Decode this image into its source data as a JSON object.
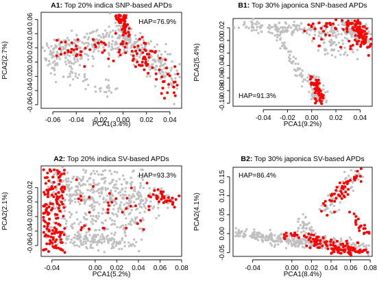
{
  "colors": {
    "background": "#808080",
    "highlight": "#ff0000",
    "grey": "#c0c0c0"
  },
  "chart_data": [
    {
      "id": "A1",
      "type": "scatter",
      "tag": "A1:",
      "title": "Top 20% indica SNP-based APDs",
      "annotation": "HAP=76.9%",
      "annotation_pos": "top-right",
      "xlabel": "PCA1(3.4%)",
      "ylabel": "PCA2(2.7%)",
      "xlim": [
        -0.07,
        0.05
      ],
      "ylim": [
        -0.065,
        0.07
      ],
      "xticks": [
        -0.06,
        -0.04,
        -0.02,
        0.0,
        0.02,
        0.04
      ],
      "xtick_labels": [
        "-0.06",
        "-0.04",
        "-0.02",
        "0.00",
        "0.02",
        "0.04"
      ],
      "yticks": [
        -0.06,
        -0.04,
        -0.02,
        0.0,
        0.02,
        0.04,
        0.06
      ],
      "ytick_labels": [
        "-0.06",
        "-0.04",
        "-0.02",
        "0.00",
        "0.02",
        "0.04",
        "0.06"
      ],
      "grid": false,
      "series": [
        {
          "color": "#c0c0c0",
          "n": 520,
          "seed": 11,
          "clusters": [
            {
              "type": "band",
              "w": 0.45,
              "x1": -0.066,
              "y1": 0.005,
              "x2": 0.0,
              "y2": 0.035,
              "sx": 0.003,
              "sy": 0.012
            },
            {
              "type": "band",
              "w": 0.35,
              "x1": 0.0,
              "y1": 0.035,
              "x2": 0.044,
              "y2": -0.02,
              "sx": 0.004,
              "sy": 0.012
            },
            {
              "type": "band",
              "w": 0.12,
              "x1": -0.002,
              "y1": 0.064,
              "x2": 0.004,
              "y2": 0.02,
              "sx": 0.003,
              "sy": 0.006
            },
            {
              "type": "band",
              "w": 0.08,
              "x1": -0.05,
              "y1": -0.012,
              "x2": -0.01,
              "y2": -0.04,
              "sx": 0.004,
              "sy": 0.005
            }
          ]
        },
        {
          "color": "#ff0000",
          "n": 160,
          "seed": 12,
          "clusters": [
            {
              "type": "band",
              "w": 0.3,
              "x1": -0.002,
              "y1": 0.066,
              "x2": 0.003,
              "y2": 0.04,
              "sx": 0.002,
              "sy": 0.004
            },
            {
              "type": "band",
              "w": 0.45,
              "x1": 0.0,
              "y1": 0.03,
              "x2": 0.044,
              "y2": -0.03,
              "sx": 0.005,
              "sy": 0.012
            },
            {
              "type": "band",
              "w": 0.25,
              "x1": -0.055,
              "y1": 0.015,
              "x2": -0.005,
              "y2": 0.02,
              "sx": 0.006,
              "sy": 0.01
            }
          ]
        }
      ]
    },
    {
      "id": "B1",
      "type": "scatter",
      "tag": "B1:",
      "title": "Top 30% japonica SNP-based APDs",
      "annotation": "HAP=91.3%",
      "annotation_pos": "bottom-left",
      "xlabel": "PCA1(9.2%)",
      "ylabel": "PCA2(5.4%)",
      "xlim": [
        -0.065,
        0.05
      ],
      "ylim": [
        -0.105,
        0.035
      ],
      "xticks": [
        -0.04,
        -0.02,
        0.0,
        0.02,
        0.04
      ],
      "xtick_labels": [
        "-0.04",
        "-0.02",
        "0.00",
        "0.02",
        "0.04"
      ],
      "yticks": [
        -0.1,
        -0.08,
        -0.06,
        -0.04,
        -0.02,
        0.0,
        0.02
      ],
      "ytick_labels": [
        "-0.10",
        "-0.08",
        "-0.06",
        "-0.04",
        "-0.02",
        "0.00",
        "0.02"
      ],
      "grid": false,
      "series": [
        {
          "color": "#c0c0c0",
          "n": 480,
          "seed": 21,
          "clusters": [
            {
              "type": "band",
              "w": 0.4,
              "x1": -0.062,
              "y1": 0.025,
              "x2": 0.045,
              "y2": 0.012,
              "sx": 0.003,
              "sy": 0.006
            },
            {
              "type": "band",
              "w": 0.22,
              "x1": 0.03,
              "y1": 0.03,
              "x2": 0.045,
              "y2": 0.0,
              "sx": 0.004,
              "sy": 0.006
            },
            {
              "type": "band",
              "w": 0.16,
              "x1": -0.03,
              "y1": 0.015,
              "x2": 0.005,
              "y2": -0.1,
              "sx": 0.002,
              "sy": 0.003
            },
            {
              "type": "band",
              "w": 0.12,
              "x1": 0.0,
              "y1": -0.06,
              "x2": 0.01,
              "y2": -0.1,
              "sx": 0.003,
              "sy": 0.004
            },
            {
              "type": "band",
              "w": 0.1,
              "x1": 0.01,
              "y1": 0.0,
              "x2": 0.03,
              "y2": -0.02,
              "sx": 0.006,
              "sy": 0.008
            }
          ]
        },
        {
          "color": "#ff0000",
          "n": 170,
          "seed": 22,
          "clusters": [
            {
              "type": "band",
              "w": 0.4,
              "x1": 0.036,
              "y1": 0.03,
              "x2": 0.045,
              "y2": -0.008,
              "sx": 0.003,
              "sy": 0.003
            },
            {
              "type": "band",
              "w": 0.3,
              "x1": 0.002,
              "y1": -0.06,
              "x2": 0.008,
              "y2": -0.1,
              "sx": 0.002,
              "sy": 0.004
            },
            {
              "type": "band",
              "w": 0.2,
              "x1": 0.0,
              "y1": 0.025,
              "x2": 0.045,
              "y2": 0.02,
              "sx": 0.006,
              "sy": 0.005
            },
            {
              "type": "band",
              "w": 0.1,
              "x1": 0.0,
              "y1": 0.0,
              "x2": 0.045,
              "y2": -0.005,
              "sx": 0.005,
              "sy": 0.01
            }
          ]
        }
      ]
    },
    {
      "id": "A2",
      "type": "scatter",
      "tag": "A2:",
      "title": "Top 20% indica SV-based APDs",
      "annotation": "HAP=93.3%",
      "annotation_pos": "top-right",
      "xlabel": "PCA1(5.2%)",
      "ylabel": "PCA2(2.1%)",
      "xlim": [
        -0.05,
        0.08
      ],
      "ylim": [
        -0.075,
        0.05
      ],
      "xticks": [
        -0.04,
        0.0,
        0.02,
        0.04,
        0.06,
        0.08
      ],
      "xtick_labels": [
        "-0.04",
        "0.00",
        "0.02",
        "0.04",
        "0.06",
        "0.08"
      ],
      "yticks": [
        -0.06,
        -0.04,
        -0.02,
        0.0,
        0.02
      ],
      "ytick_labels": [
        "-0.06",
        "-0.04",
        "-0.02",
        "0.00",
        "0.02"
      ],
      "grid": false,
      "series": [
        {
          "color": "#c0c0c0",
          "n": 680,
          "seed": 31,
          "clusters": [
            {
              "type": "box",
              "w": 0.55,
              "x": [
                -0.045,
                0.045
              ],
              "y": [
                -0.06,
                0.045
              ]
            },
            {
              "type": "band",
              "w": 0.3,
              "x1": -0.04,
              "y1": 0.02,
              "x2": 0.07,
              "y2": 0.0,
              "sx": 0.006,
              "sy": 0.012
            },
            {
              "type": "band",
              "w": 0.15,
              "x1": -0.02,
              "y1": -0.05,
              "x2": 0.03,
              "y2": -0.06,
              "sx": 0.008,
              "sy": 0.006
            }
          ]
        },
        {
          "color": "#ff0000",
          "n": 220,
          "seed": 32,
          "clusters": [
            {
              "type": "box",
              "w": 0.7,
              "x": [
                -0.048,
                -0.028
              ],
              "y": [
                -0.07,
                0.045
              ]
            },
            {
              "type": "band",
              "w": 0.15,
              "x1": 0.05,
              "y1": 0.01,
              "x2": 0.078,
              "y2": 0.0,
              "sx": 0.003,
              "sy": 0.004
            },
            {
              "type": "box",
              "w": 0.15,
              "x": [
                -0.02,
                0.05
              ],
              "y": [
                -0.04,
                0.035
              ]
            }
          ]
        }
      ]
    },
    {
      "id": "B2",
      "type": "scatter",
      "tag": "B2:",
      "title": "Top 30% japonica SV-based APDs",
      "annotation": "HAP=86.4%",
      "annotation_pos": "top-left",
      "xlabel": "PCA1(8.4%)",
      "ylabel": "PCA2(4.1%)",
      "xlim": [
        -0.06,
        0.082
      ],
      "ylim": [
        -0.06,
        0.175
      ],
      "xticks": [
        -0.04,
        0.0,
        0.02,
        0.04,
        0.06,
        0.08
      ],
      "xtick_labels": [
        "-0.04",
        "0.00",
        "0.02",
        "0.04",
        "0.06",
        "0.08"
      ],
      "yticks": [
        -0.05,
        0.0,
        0.05,
        0.1,
        0.15
      ],
      "ytick_labels": [
        "-0.05",
        "0.00",
        "0.05",
        "0.10",
        "0.15"
      ],
      "grid": false,
      "series": [
        {
          "color": "#c0c0c0",
          "n": 460,
          "seed": 41,
          "clusters": [
            {
              "type": "band",
              "w": 0.75,
              "x1": -0.056,
              "y1": 0.0,
              "x2": 0.075,
              "y2": -0.04,
              "sx": 0.004,
              "sy": 0.008
            },
            {
              "type": "band",
              "w": 0.15,
              "x1": 0.03,
              "y1": 0.06,
              "x2": 0.068,
              "y2": 0.16,
              "sx": 0.004,
              "sy": 0.012
            },
            {
              "type": "band",
              "w": 0.1,
              "x1": 0.01,
              "y1": 0.04,
              "x2": 0.02,
              "y2": -0.02,
              "sx": 0.004,
              "sy": 0.01
            }
          ]
        },
        {
          "color": "#ff0000",
          "n": 200,
          "seed": 42,
          "clusters": [
            {
              "type": "band",
              "w": 0.55,
              "x1": 0.02,
              "y1": -0.02,
              "x2": 0.075,
              "y2": -0.05,
              "sx": 0.006,
              "sy": 0.01
            },
            {
              "type": "band",
              "w": 0.25,
              "x1": 0.03,
              "y1": 0.06,
              "x2": 0.07,
              "y2": 0.165,
              "sx": 0.004,
              "sy": 0.01
            },
            {
              "type": "band",
              "w": 0.1,
              "x1": -0.01,
              "y1": 0.0,
              "x2": 0.02,
              "y2": -0.01,
              "sx": 0.006,
              "sy": 0.008
            },
            {
              "type": "band",
              "w": 0.1,
              "x1": 0.06,
              "y1": 0.05,
              "x2": 0.078,
              "y2": 0.0,
              "sx": 0.003,
              "sy": 0.01
            }
          ]
        }
      ]
    }
  ]
}
